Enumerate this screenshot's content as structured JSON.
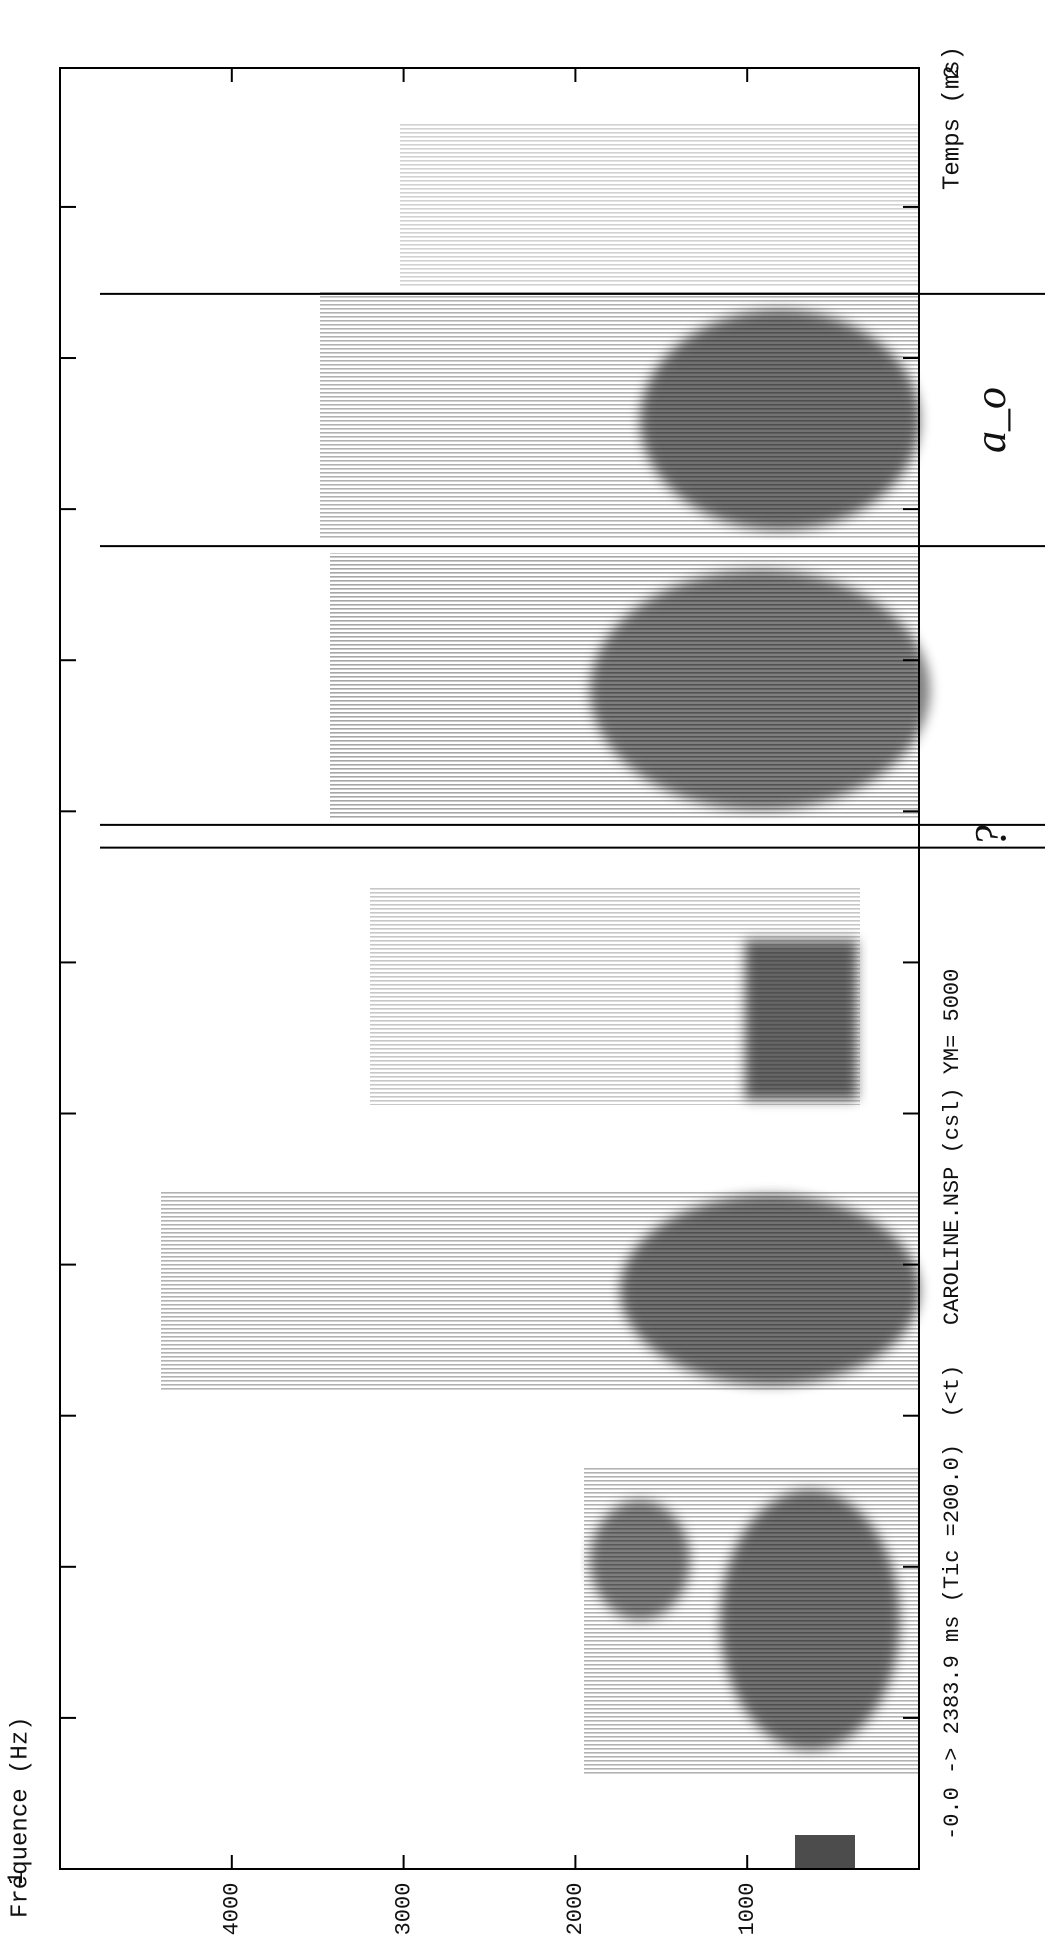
{
  "chart_data": {
    "type": "spectrogram",
    "y_label": "Fréquence (Hz)",
    "x_label": "Temps (ms)",
    "subtitle": "-0.0 -> 2383.9 ms (Tic =200.0)  (<t)   CAROLINE.NSP (csl) YM= 5000",
    "ylim": [
      0,
      5000
    ],
    "yticks": [
      1000,
      2000,
      3000,
      4000
    ],
    "xlim": [
      0,
      2383.9
    ],
    "xticks": [
      200,
      400,
      600,
      800,
      1000,
      1200,
      1400,
      1600,
      1800,
      2000,
      2200
    ],
    "corner_labels": [
      "1",
      "2"
    ],
    "boundaries": [
      1352,
      1382,
      1751,
      2085
    ],
    "annotations": [
      {
        "text": "?",
        "x": 1367
      },
      {
        "text": "a_o",
        "x": 1918
      }
    ]
  }
}
